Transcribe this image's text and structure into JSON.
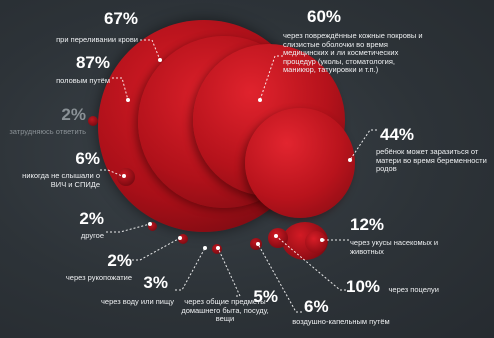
{
  "stats": [
    {
      "id": "transfusion",
      "percent": "67%",
      "text": "при переливании крови"
    },
    {
      "id": "sexual",
      "percent": "87%",
      "text": "половым путём"
    },
    {
      "id": "no_answer",
      "percent": "2%",
      "text": "затрудняюсь ответить"
    },
    {
      "id": "never_heard",
      "percent": "6%",
      "text": "никогда не слышали о ВИЧ и СПИДе"
    },
    {
      "id": "other",
      "percent": "2%",
      "text": "другое"
    },
    {
      "id": "handshake",
      "percent": "2%",
      "text": "через рукопожатие"
    },
    {
      "id": "water_food",
      "percent": "3%",
      "text": "через воду или пищу"
    },
    {
      "id": "household",
      "percent": "5%",
      "text": "через общие предметы домашнего быта, посуду, вещи"
    },
    {
      "id": "airborne",
      "percent": "6%",
      "text": "воздушно-капельным путём"
    },
    {
      "id": "kisses",
      "percent": "10%",
      "text": "через поцелуи"
    },
    {
      "id": "insects",
      "percent": "12%",
      "text": "через укусы насекомых и животных"
    },
    {
      "id": "mother_child",
      "percent": "44%",
      "text": "ребёнок может заразиться от матери во время беременности родов"
    },
    {
      "id": "skin_mucosa",
      "percent": "60%",
      "text": "через повреждённые кожные покровы и слизистые оболочки во время медицинских и ли косметических процедур (уколы, стоматология, маникюр, татуировки и т.п.)"
    }
  ],
  "colors": {
    "background": "#2d3338",
    "bubble_red": "#c0121c",
    "bubble_dark": "#6e0a10",
    "text": "#ffffff",
    "muted_text": "#8a9196"
  }
}
